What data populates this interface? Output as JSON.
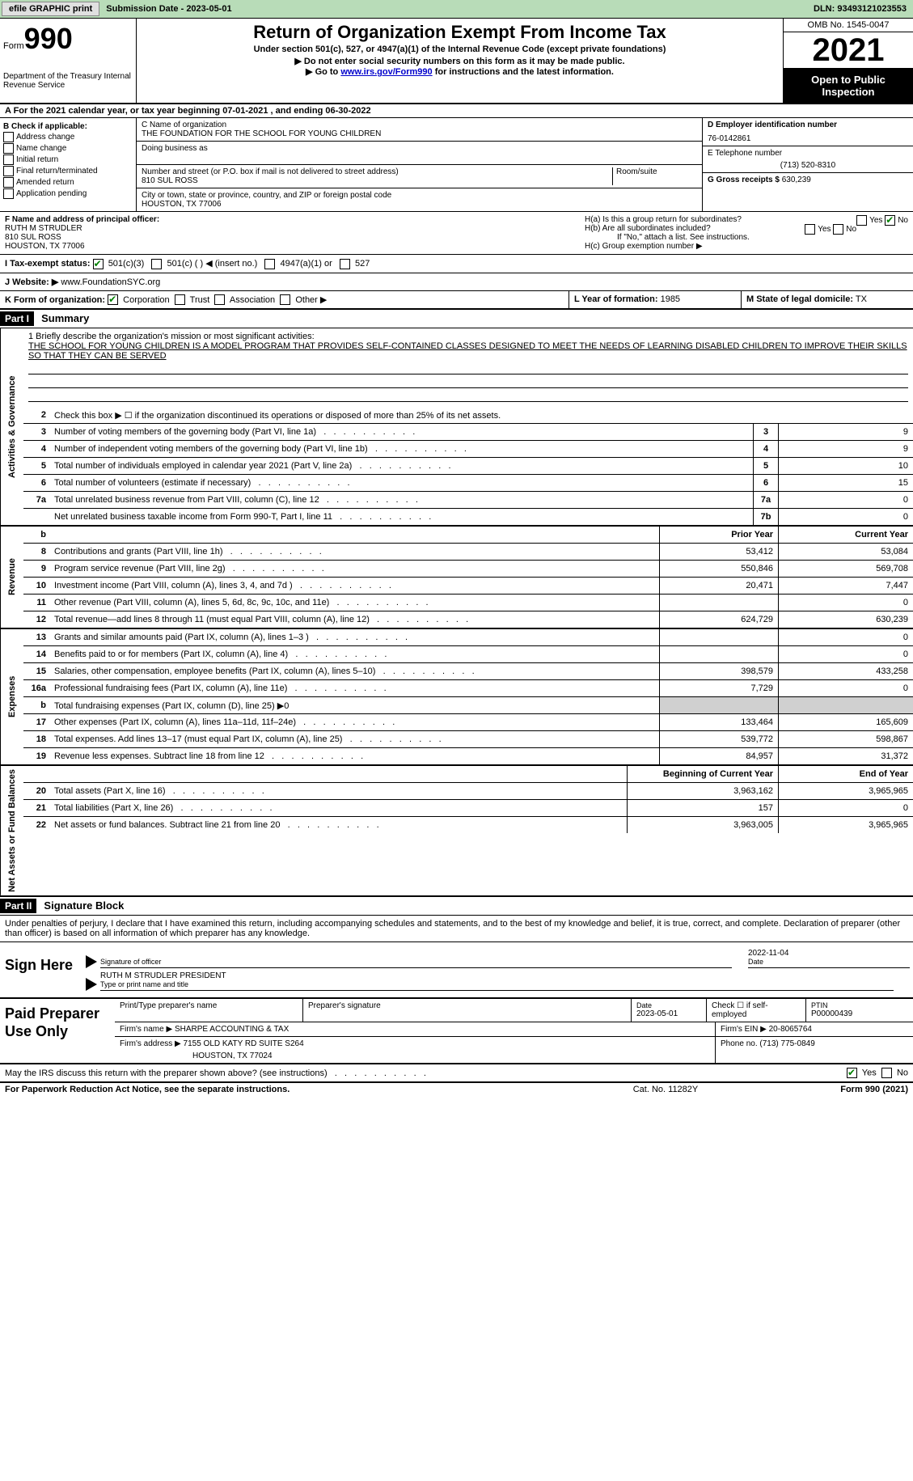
{
  "topbar": {
    "efile": "efile GRAPHIC print",
    "submission": "Submission Date - 2023-05-01",
    "dln": "DLN: 93493121023553"
  },
  "header": {
    "form_prefix": "Form",
    "form_number": "990",
    "dept": "Department of the Treasury Internal Revenue Service",
    "title": "Return of Organization Exempt From Income Tax",
    "subtitle": "Under section 501(c), 527, or 4947(a)(1) of the Internal Revenue Code (except private foundations)",
    "note1": "▶ Do not enter social security numbers on this form as it may be made public.",
    "note2_pre": "▶ Go to ",
    "note2_link": "www.irs.gov/Form990",
    "note2_post": " for instructions and the latest information.",
    "omb": "OMB No. 1545-0047",
    "year": "2021",
    "open": "Open to Public Inspection"
  },
  "row_a": "A For the 2021 calendar year, or tax year beginning 07-01-2021    , and ending 06-30-2022",
  "col_b": {
    "title": "B Check if applicable:",
    "items": [
      "Address change",
      "Name change",
      "Initial return",
      "Final return/terminated",
      "Amended return",
      "Application pending"
    ]
  },
  "col_c": {
    "name_lbl": "C Name of organization",
    "name": "THE FOUNDATION FOR THE SCHOOL FOR YOUNG CHILDREN",
    "dba_lbl": "Doing business as",
    "addr_lbl": "Number and street (or P.O. box if mail is not delivered to street address)",
    "room_lbl": "Room/suite",
    "addr": "810 SUL ROSS",
    "city_lbl": "City or town, state or province, country, and ZIP or foreign postal code",
    "city": "HOUSTON, TX  77006"
  },
  "col_d": {
    "ein_lbl": "D Employer identification number",
    "ein": "76-0142861",
    "tel_lbl": "E Telephone number",
    "tel": "(713) 520-8310",
    "gross_lbl": "G Gross receipts $",
    "gross": "630,239"
  },
  "row_f": {
    "lbl": "F Name and address of principal officer:",
    "name": "RUTH M STRUDLER",
    "addr1": "810 SUL ROSS",
    "addr2": "HOUSTON, TX  77006"
  },
  "row_h": {
    "ha": "H(a)  Is this a group return for subordinates?",
    "hb": "H(b)  Are all subordinates included?",
    "hb_note": "If \"No,\" attach a list. See instructions.",
    "hc": "H(c)  Group exemption number ▶",
    "yes": "Yes",
    "no": "No"
  },
  "row_i": {
    "lbl": "I   Tax-exempt status:",
    "opts": [
      "501(c)(3)",
      "501(c) (  ) ◀ (insert no.)",
      "4947(a)(1) or",
      "527"
    ]
  },
  "row_j": {
    "lbl": "J   Website: ▶",
    "val": "www.FoundationSYC.org"
  },
  "row_k": {
    "lbl": "K Form of organization:",
    "opts": [
      "Corporation",
      "Trust",
      "Association",
      "Other ▶"
    ],
    "l_lbl": "L Year of formation:",
    "l_val": "1985",
    "m_lbl": "M State of legal domicile:",
    "m_val": "TX"
  },
  "part1": {
    "hdr": "Part I",
    "title": "Summary"
  },
  "mission": {
    "lbl": "1   Briefly describe the organization's mission or most significant activities:",
    "text": "THE SCHOOL FOR YOUNG CHILDREN IS A MODEL PROGRAM THAT PROVIDES SELF-CONTAINED CLASSES DESIGNED TO MEET THE NEEDS OF LEARNING DISABLED CHILDREN TO IMPROVE THEIR SKILLS SO THAT THEY CAN BE SERVED"
  },
  "line2": "Check this box ▶ ☐ if the organization discontinued its operations or disposed of more than 25% of its net assets.",
  "summary_rows": [
    {
      "n": "3",
      "d": "Number of voting members of the governing body (Part VI, line 1a)",
      "box": "3",
      "v": "9"
    },
    {
      "n": "4",
      "d": "Number of independent voting members of the governing body (Part VI, line 1b)",
      "box": "4",
      "v": "9"
    },
    {
      "n": "5",
      "d": "Total number of individuals employed in calendar year 2021 (Part V, line 2a)",
      "box": "5",
      "v": "10"
    },
    {
      "n": "6",
      "d": "Total number of volunteers (estimate if necessary)",
      "box": "6",
      "v": "15"
    },
    {
      "n": "7a",
      "d": "Total unrelated business revenue from Part VIII, column (C), line 12",
      "box": "7a",
      "v": "0"
    },
    {
      "n": "",
      "d": "Net unrelated business taxable income from Form 990-T, Part I, line 11",
      "box": "7b",
      "v": "0"
    }
  ],
  "py_hdr": "Prior Year",
  "cy_hdr": "Current Year",
  "revenue_rows": [
    {
      "n": "8",
      "d": "Contributions and grants (Part VIII, line 1h)",
      "py": "53,412",
      "cy": "53,084"
    },
    {
      "n": "9",
      "d": "Program service revenue (Part VIII, line 2g)",
      "py": "550,846",
      "cy": "569,708"
    },
    {
      "n": "10",
      "d": "Investment income (Part VIII, column (A), lines 3, 4, and 7d )",
      "py": "20,471",
      "cy": "7,447"
    },
    {
      "n": "11",
      "d": "Other revenue (Part VIII, column (A), lines 5, 6d, 8c, 9c, 10c, and 11e)",
      "py": "",
      "cy": "0"
    },
    {
      "n": "12",
      "d": "Total revenue—add lines 8 through 11 (must equal Part VIII, column (A), line 12)",
      "py": "624,729",
      "cy": "630,239"
    }
  ],
  "expense_rows": [
    {
      "n": "13",
      "d": "Grants and similar amounts paid (Part IX, column (A), lines 1–3 )",
      "py": "",
      "cy": "0"
    },
    {
      "n": "14",
      "d": "Benefits paid to or for members (Part IX, column (A), line 4)",
      "py": "",
      "cy": "0"
    },
    {
      "n": "15",
      "d": "Salaries, other compensation, employee benefits (Part IX, column (A), lines 5–10)",
      "py": "398,579",
      "cy": "433,258"
    },
    {
      "n": "16a",
      "d": "Professional fundraising fees (Part IX, column (A), line 11e)",
      "py": "7,729",
      "cy": "0"
    },
    {
      "n": "b",
      "d": "Total fundraising expenses (Part IX, column (D), line 25) ▶0",
      "py": "shade",
      "cy": "shade"
    },
    {
      "n": "17",
      "d": "Other expenses (Part IX, column (A), lines 11a–11d, 11f–24e)",
      "py": "133,464",
      "cy": "165,609"
    },
    {
      "n": "18",
      "d": "Total expenses. Add lines 13–17 (must equal Part IX, column (A), line 25)",
      "py": "539,772",
      "cy": "598,867"
    },
    {
      "n": "19",
      "d": "Revenue less expenses. Subtract line 18 from line 12",
      "py": "84,957",
      "cy": "31,372"
    }
  ],
  "bcy_hdr": "Beginning of Current Year",
  "eoy_hdr": "End of Year",
  "netassets_rows": [
    {
      "n": "20",
      "d": "Total assets (Part X, line 16)",
      "py": "3,963,162",
      "cy": "3,965,965"
    },
    {
      "n": "21",
      "d": "Total liabilities (Part X, line 26)",
      "py": "157",
      "cy": "0"
    },
    {
      "n": "22",
      "d": "Net assets or fund balances. Subtract line 21 from line 20",
      "py": "3,963,005",
      "cy": "3,965,965"
    }
  ],
  "side_labels": {
    "ag": "Activities & Governance",
    "rev": "Revenue",
    "exp": "Expenses",
    "na": "Net Assets or Fund Balances"
  },
  "part2": {
    "hdr": "Part II",
    "title": "Signature Block"
  },
  "sig_text": "Under penalties of perjury, I declare that I have examined this return, including accompanying schedules and statements, and to the best of my knowledge and belief, it is true, correct, and complete. Declaration of preparer (other than officer) is based on all information of which preparer has any knowledge.",
  "sign": {
    "lbl": "Sign Here",
    "sig_lbl": "Signature of officer",
    "date": "2022-11-04",
    "date_lbl": "Date",
    "name": "RUTH M STRUDLER  PRESIDENT",
    "name_lbl": "Type or print name and title"
  },
  "paid": {
    "lbl": "Paid Preparer Use Only",
    "r1": {
      "c1": "Print/Type preparer's name",
      "c2": "Preparer's signature",
      "c3_lbl": "Date",
      "c3": "2023-05-01",
      "c4": "Check ☐ if self-employed",
      "c5_lbl": "PTIN",
      "c5": "P00000439"
    },
    "r2": {
      "c1": "Firm's name    ▶",
      "c1v": "SHARPE ACCOUNTING & TAX",
      "c2": "Firm's EIN ▶",
      "c2v": "20-8065764"
    },
    "r3": {
      "c1": "Firm's address ▶",
      "c1v": "7155 OLD KATY RD SUITE S264",
      "c1v2": "HOUSTON, TX  77024",
      "c2": "Phone no.",
      "c2v": "(713) 775-0849"
    }
  },
  "footer_q": "May the IRS discuss this return with the preparer shown above? (see instructions)",
  "footer": {
    "l": "For Paperwork Reduction Act Notice, see the separate instructions.",
    "m": "Cat. No. 11282Y",
    "r": "Form 990 (2021)"
  }
}
